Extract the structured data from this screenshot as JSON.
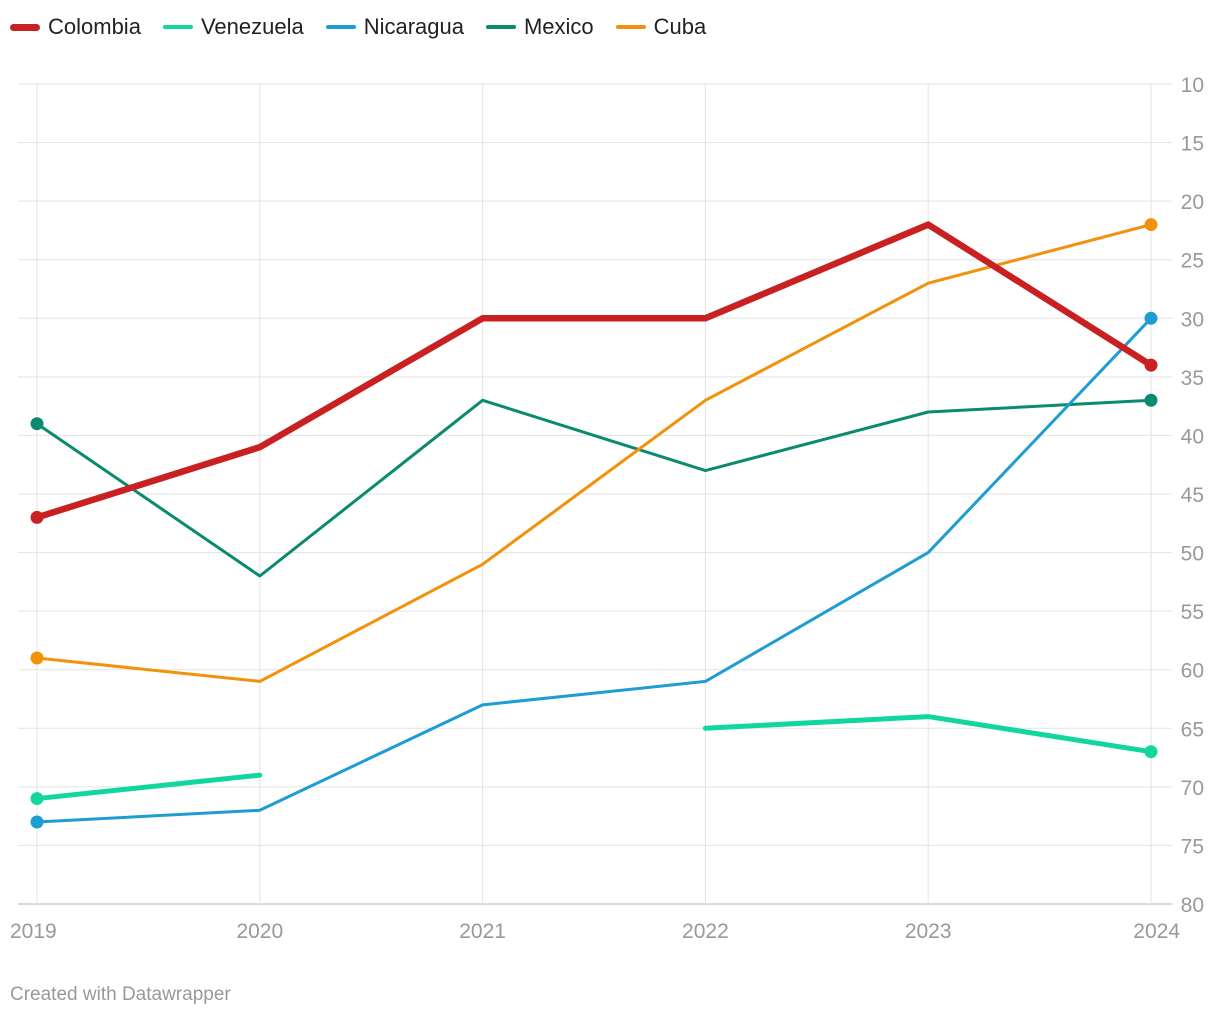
{
  "credit": "Created with Datawrapper",
  "chart_data": {
    "type": "line",
    "x": [
      2019,
      2020,
      2021,
      2022,
      2023,
      2024
    ],
    "y_axis": {
      "position": "right",
      "reversed": true,
      "ylim": [
        10,
        80
      ],
      "ticks": [
        10,
        15,
        20,
        25,
        30,
        35,
        40,
        45,
        50,
        55,
        60,
        65,
        70,
        75,
        80
      ]
    },
    "grid": true,
    "legend_placement": "top-left",
    "series": [
      {
        "name": "Colombia",
        "color": "#c92121",
        "emphasis": "thick",
        "values": [
          47,
          41,
          30,
          30,
          22,
          34
        ],
        "end_markers": true
      },
      {
        "name": "Venezuela",
        "color": "#12d6a0",
        "emphasis": "medium",
        "values": [
          71,
          69,
          null,
          65,
          64,
          67
        ],
        "end_markers": true
      },
      {
        "name": "Nicaragua",
        "color": "#1d9dd3",
        "emphasis": "thin",
        "values": [
          73,
          72,
          63,
          61,
          50,
          30
        ],
        "end_markers": true
      },
      {
        "name": "Mexico",
        "color": "#0a8a6e",
        "emphasis": "thin",
        "values": [
          39,
          52,
          37,
          43,
          38,
          37
        ],
        "end_markers": true
      },
      {
        "name": "Cuba",
        "color": "#f2910a",
        "emphasis": "thin",
        "values": [
          59,
          61,
          51,
          37,
          27,
          22
        ],
        "end_markers": true
      }
    ]
  }
}
